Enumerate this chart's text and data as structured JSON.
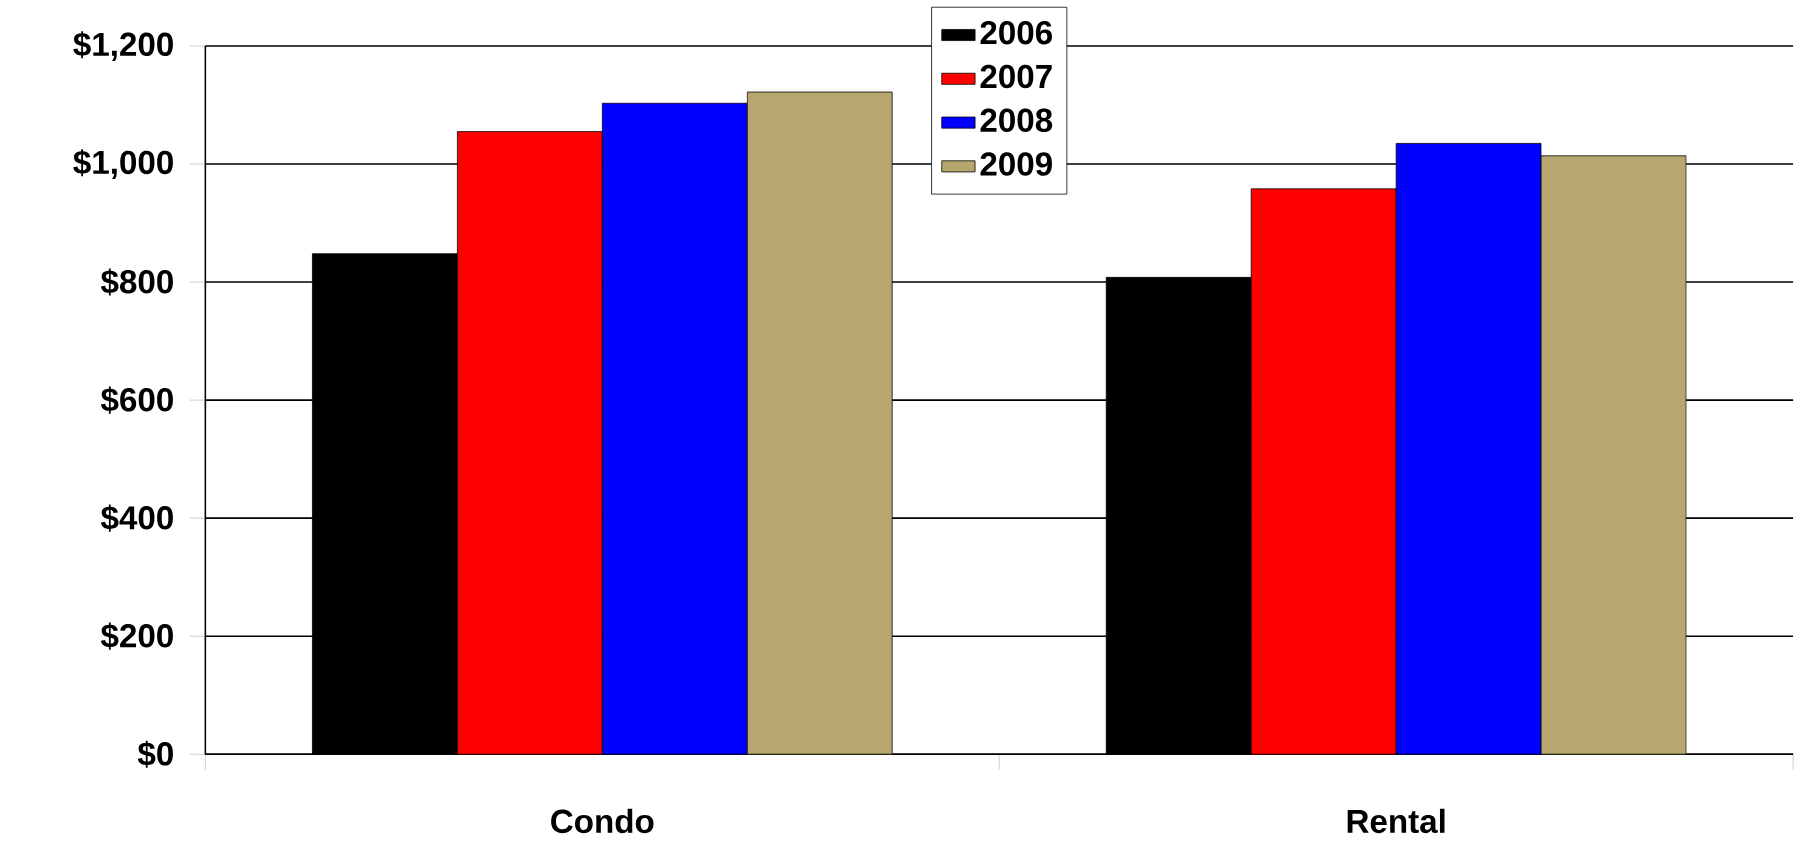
{
  "chart_data": {
    "type": "bar",
    "categories": [
      "Condo",
      "Rental"
    ],
    "series": [
      {
        "name": "2006",
        "color": "#000000",
        "values": [
          848,
          808
        ]
      },
      {
        "name": "2007",
        "color": "#ff0000",
        "values": [
          1055,
          958
        ]
      },
      {
        "name": "2008",
        "color": "#0000ff",
        "values": [
          1103,
          1035
        ]
      },
      {
        "name": "2009",
        "color": "#b5a76e",
        "values": [
          1122,
          1014
        ]
      }
    ],
    "ylim": [
      0,
      1200
    ],
    "yticks": [
      {
        "value": 0,
        "label": "$0"
      },
      {
        "value": 200,
        "label": "$200"
      },
      {
        "value": 400,
        "label": "$400"
      },
      {
        "value": 600,
        "label": "$600"
      },
      {
        "value": 800,
        "label": "$800"
      },
      {
        "value": 1000,
        "label": "$1,000"
      },
      {
        "value": 1200,
        "label": "$1,200"
      }
    ],
    "grid": "y",
    "legend": "top"
  }
}
